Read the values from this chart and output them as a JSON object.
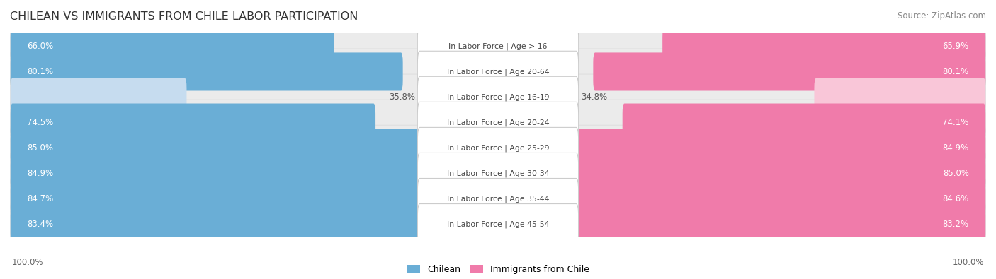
{
  "title": "CHILEAN VS IMMIGRANTS FROM CHILE LABOR PARTICIPATION",
  "source": "Source: ZipAtlas.com",
  "categories": [
    "In Labor Force | Age > 16",
    "In Labor Force | Age 20-64",
    "In Labor Force | Age 16-19",
    "In Labor Force | Age 20-24",
    "In Labor Force | Age 25-29",
    "In Labor Force | Age 30-34",
    "In Labor Force | Age 35-44",
    "In Labor Force | Age 45-54"
  ],
  "chilean_values": [
    66.0,
    80.1,
    35.8,
    74.5,
    85.0,
    84.9,
    84.7,
    83.4
  ],
  "immigrant_values": [
    65.9,
    80.1,
    34.8,
    74.1,
    84.9,
    85.0,
    84.6,
    83.2
  ],
  "chilean_color": "#6aaed6",
  "chilean_color_light": "#c6dcef",
  "immigrant_color": "#f07baa",
  "immigrant_color_light": "#f9c6d8",
  "row_bg_color": "#e8e8e8",
  "row_alt_color": "#f2f2f2",
  "label_color_white": "#ffffff",
  "label_color_dark": "#555555",
  "background_color": "#ffffff",
  "max_value": 100.0,
  "legend_chilean": "Chilean",
  "legend_immigrant": "Immigrants from Chile",
  "axis_label": "100.0%"
}
